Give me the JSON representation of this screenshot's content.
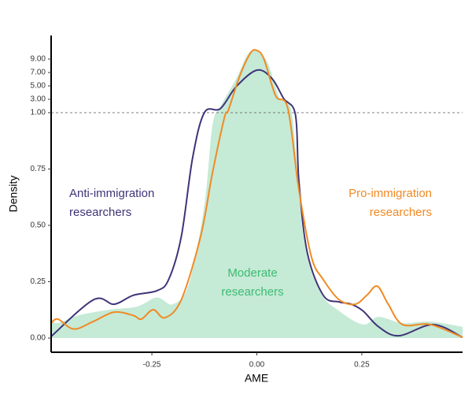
{
  "chart_data": {
    "type": "density",
    "x_label": "AME",
    "y_label": "Density",
    "xlim": [
      -0.49,
      0.49
    ],
    "xticks": [
      -0.25,
      {
        "value": 0,
        "label": "0.00"
      },
      0.25
    ],
    "ylim": [
      -0.063,
      12.53
    ],
    "y_break": 1,
    "yticks": [
      {
        "value": 0,
        "label": "0.00"
      },
      0.25,
      {
        "value": 0.5,
        "label": "0.50"
      },
      0.75,
      {
        "value": 1,
        "label": "1.00"
      },
      {
        "value": 3,
        "label": "3.00"
      },
      {
        "value": 5,
        "label": "5.00"
      },
      {
        "value": 7,
        "label": "7.00"
      },
      {
        "value": 9,
        "label": "9.00"
      }
    ],
    "series": [
      {
        "name_lines": [
          "Moderate",
          "researchers"
        ],
        "color": "#c5ead6",
        "label_color": "#3dbb72",
        "fill": true,
        "x": [
          -0.49,
          -0.474,
          -0.426,
          -0.351,
          -0.285,
          -0.238,
          -0.2,
          -0.162,
          -0.125,
          -0.106,
          -0.087,
          -0.049,
          -0.021,
          0,
          0.026,
          0.055,
          0.083,
          0.111,
          0.149,
          0.196,
          0.253,
          0.29,
          0.347,
          0.413,
          0.49
        ],
        "values": [
          0.084,
          0.066,
          0.1,
          0.126,
          0.14,
          0.18,
          0.15,
          0.24,
          0.59,
          0.94,
          1.9,
          6.1,
          9.8,
          10.2,
          8.4,
          3.1,
          1.0,
          0.45,
          0.21,
          0.12,
          0.06,
          0.094,
          0.066,
          0.073,
          0.05
        ]
      },
      {
        "name_lines": [
          "Anti-immigration",
          "researchers"
        ],
        "color": "#3f3478",
        "label_color": "#3f3478",
        "fill": false,
        "x": [
          -0.49,
          -0.389,
          -0.34,
          -0.294,
          -0.238,
          -0.21,
          -0.18,
          -0.153,
          -0.125,
          -0.087,
          -0.049,
          0,
          0.036,
          0.064,
          0.092,
          0.1,
          0.12,
          0.158,
          0.196,
          0.225,
          0.253,
          0.29,
          0.338,
          0.42,
          0.49
        ],
        "values": [
          0.007,
          0.17,
          0.15,
          0.19,
          0.21,
          0.26,
          0.45,
          0.8,
          1.0,
          1.6,
          4.9,
          7.35,
          6.1,
          3.1,
          0.99,
          0.7,
          0.38,
          0.19,
          0.16,
          0.15,
          0.12,
          0.05,
          0.01,
          0.06,
          0.003
        ]
      },
      {
        "name_lines": [
          "Pro-immigration",
          "researchers"
        ],
        "color": "#f08a24",
        "label_color": "#f08a24",
        "fill": false,
        "x": [
          -0.49,
          -0.474,
          -0.436,
          -0.39,
          -0.34,
          -0.294,
          -0.275,
          -0.247,
          -0.219,
          -0.18,
          -0.134,
          -0.106,
          -0.077,
          -0.068,
          -0.04,
          -0.015,
          0,
          0.017,
          0.045,
          0.074,
          0.1,
          0.13,
          0.158,
          0.196,
          0.234,
          0.262,
          0.287,
          0.313,
          0.347,
          0.413,
          0.49
        ],
        "values": [
          0.066,
          0.084,
          0.04,
          0.073,
          0.115,
          0.1,
          0.084,
          0.126,
          0.09,
          0.17,
          0.45,
          0.73,
          0.98,
          1.35,
          6.6,
          9.9,
          10.3,
          9.0,
          3.5,
          1.6,
          0.66,
          0.36,
          0.26,
          0.17,
          0.15,
          0.19,
          0.23,
          0.15,
          0.06,
          0.06,
          0.003
        ]
      }
    ]
  }
}
